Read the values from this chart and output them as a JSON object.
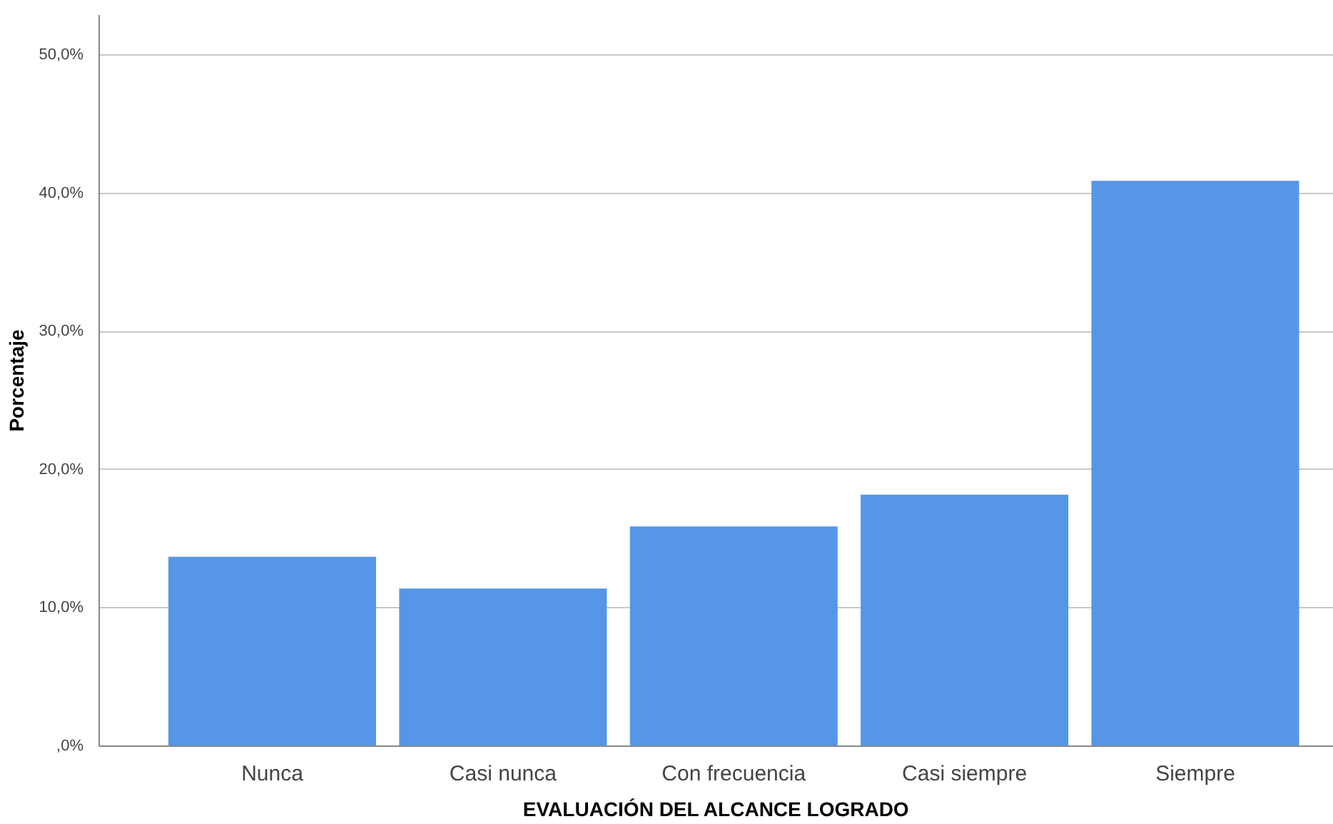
{
  "chart_data": {
    "type": "bar",
    "xlabel": "EVALUACIÓN DEL ALCANCE LOGRADO",
    "ylabel": "Porcentaje",
    "categories": [
      "Nunca",
      "Casi nunca",
      "Con frecuencia",
      "Casi siempre",
      "Siempre"
    ],
    "values": [
      13.7,
      11.4,
      15.9,
      18.2,
      40.9
    ],
    "color": "#5596e6",
    "ylim": [
      0,
      52.9
    ],
    "yticks": [
      {
        "value": 0,
        "label": ",0%"
      },
      {
        "value": 10,
        "label": "10,0%"
      },
      {
        "value": 20,
        "label": "20,0%"
      },
      {
        "value": 30,
        "label": "30,0%"
      },
      {
        "value": 40,
        "label": "40,0%"
      },
      {
        "value": 50,
        "label": "50,0%"
      }
    ],
    "grid": "y"
  }
}
